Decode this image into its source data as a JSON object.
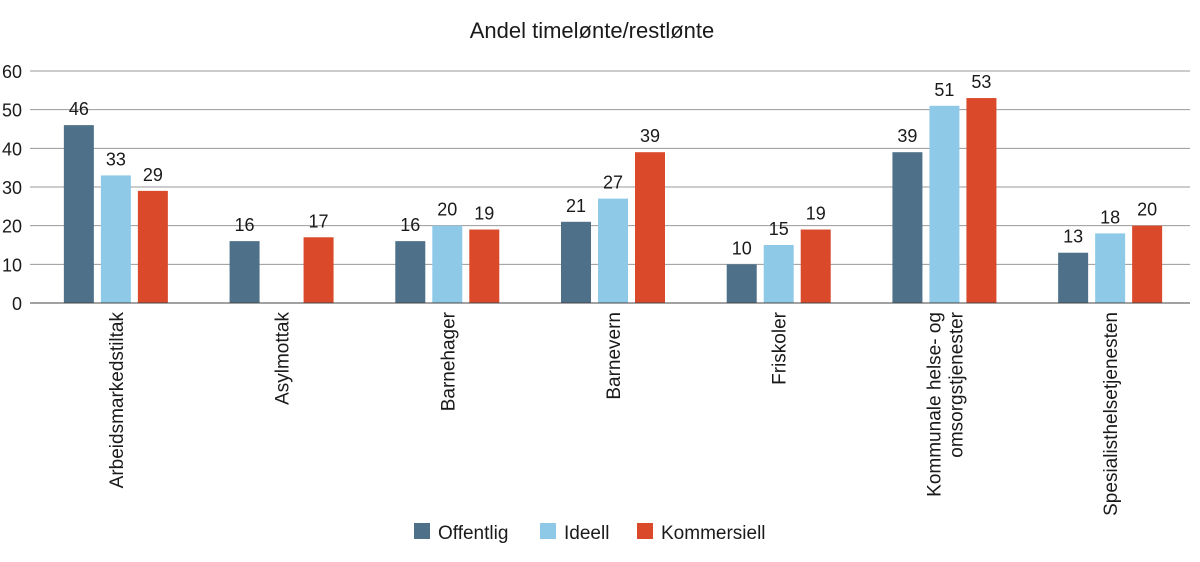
{
  "chart_data": {
    "type": "bar",
    "title": "Andel timelønte/restlønte",
    "xlabel": "",
    "ylabel": "",
    "ylim": [
      0,
      60
    ],
    "yticks": [
      0,
      10,
      20,
      30,
      40,
      50,
      60
    ],
    "grid": true,
    "legend_position": "bottom",
    "categories": [
      [
        "Arbeidsmarkedstiltak"
      ],
      [
        "Asylmottak"
      ],
      [
        "Barnehager"
      ],
      [
        "Barnevern"
      ],
      [
        "Friskoler"
      ],
      [
        "Kommunale helse- og",
        "omsorgstjenester"
      ],
      [
        "Spesialisthelsetjenesten"
      ]
    ],
    "series": [
      {
        "name": "Offentlig",
        "color": "#4e7189",
        "values": [
          46,
          16,
          16,
          21,
          10,
          39,
          13
        ]
      },
      {
        "name": "Ideell",
        "color": "#8ecae8",
        "values": [
          33,
          null,
          20,
          27,
          15,
          51,
          18
        ]
      },
      {
        "name": "Kommersiell",
        "color": "#d9492a",
        "values": [
          29,
          17,
          19,
          39,
          19,
          53,
          20
        ]
      }
    ]
  }
}
